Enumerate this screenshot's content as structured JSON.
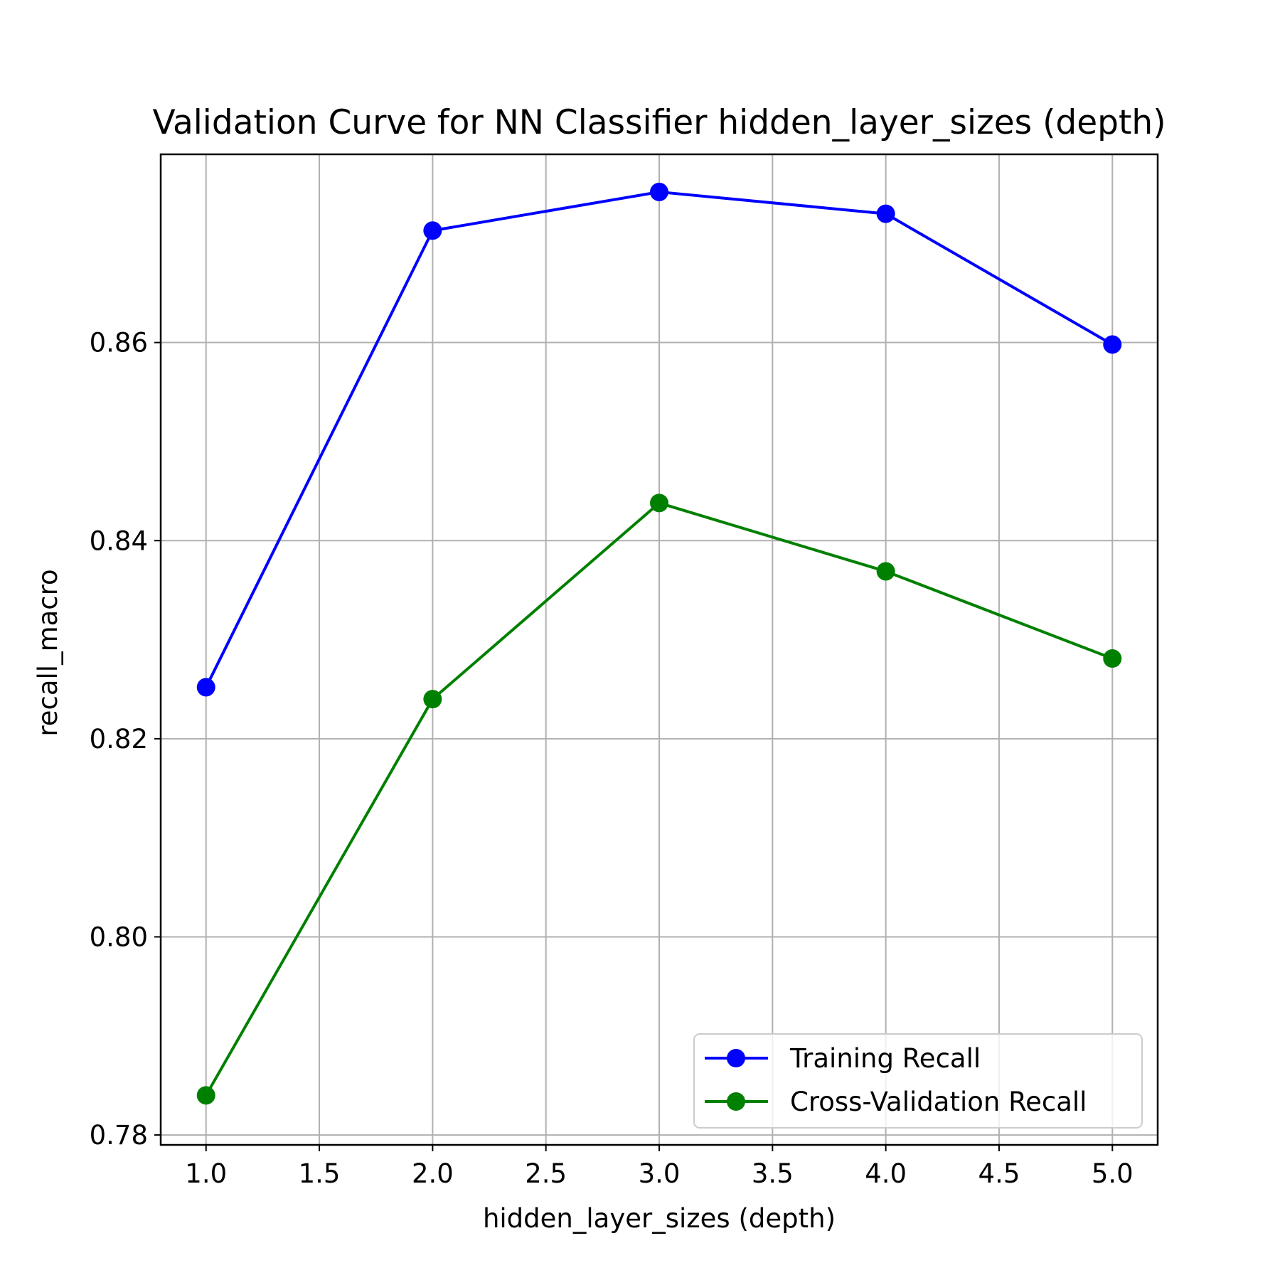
{
  "chart_data": {
    "type": "line",
    "title": "Validation Curve for NN Classifier hidden_layer_sizes (depth)",
    "xlabel": "hidden_layer_sizes (depth)",
    "ylabel": "recall_macro",
    "xlim": [
      0.8,
      5.2
    ],
    "ylim": [
      0.779,
      0.879
    ],
    "xticks": [
      1.0,
      1.5,
      2.0,
      2.5,
      3.0,
      3.5,
      4.0,
      4.5,
      5.0
    ],
    "xtick_labels": [
      "1.0",
      "1.5",
      "2.0",
      "2.5",
      "3.0",
      "3.5",
      "4.0",
      "4.5",
      "5.0"
    ],
    "yticks": [
      0.78,
      0.8,
      0.82,
      0.84,
      0.86
    ],
    "ytick_labels": [
      "0.78",
      "0.80",
      "0.82",
      "0.84",
      "0.86"
    ],
    "grid": true,
    "legend_position": "lower right",
    "x": [
      1,
      2,
      3,
      4,
      5
    ],
    "series": [
      {
        "name": "Training Recall",
        "color": "#0000ff",
        "marker": "circle",
        "values": [
          0.8252,
          0.8713,
          0.8752,
          0.873,
          0.8598
        ]
      },
      {
        "name": "Cross-Validation Recall",
        "color": "#008000",
        "marker": "circle",
        "values": [
          0.784,
          0.824,
          0.8438,
          0.8369,
          0.8281
        ]
      }
    ]
  }
}
